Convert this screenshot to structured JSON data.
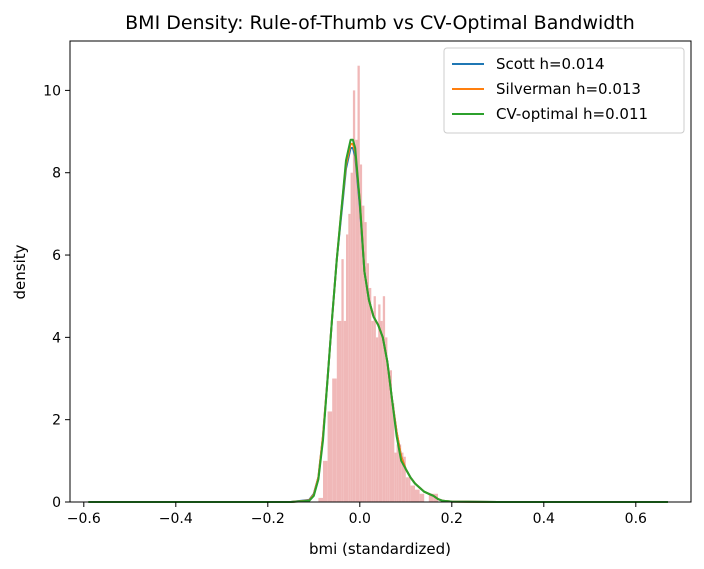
{
  "chart_data": {
    "type": "line",
    "title": "BMI Density: Rule-of-Thumb vs CV-Optimal Bandwidth",
    "xlabel": "bmi (standardized)",
    "ylabel": "density",
    "xlim": [
      -0.63,
      0.72
    ],
    "ylim": [
      0,
      11.2
    ],
    "xticks": [
      -0.6,
      -0.4,
      -0.2,
      0.0,
      0.2,
      0.4,
      0.6
    ],
    "xtick_labels": [
      "−0.6",
      "−0.4",
      "−0.2",
      "0.0",
      "0.2",
      "0.4",
      "0.6"
    ],
    "yticks": [
      0,
      2,
      4,
      6,
      8,
      10
    ],
    "ytick_labels": [
      "0",
      "2",
      "4",
      "6",
      "8",
      "10"
    ],
    "grid": false,
    "legend_position": "top-right",
    "histogram": {
      "color": "#f0b8b8",
      "bins": [
        {
          "x0": -0.09,
          "x1": -0.08,
          "value": 0.1
        },
        {
          "x0": -0.08,
          "x1": -0.07,
          "value": 1.0
        },
        {
          "x0": -0.07,
          "x1": -0.06,
          "value": 2.2
        },
        {
          "x0": -0.06,
          "x1": -0.05,
          "value": 3.0
        },
        {
          "x0": -0.05,
          "x1": -0.04,
          "value": 4.4
        },
        {
          "x0": -0.04,
          "x1": -0.035,
          "value": 5.9
        },
        {
          "x0": -0.035,
          "x1": -0.03,
          "value": 4.4
        },
        {
          "x0": -0.03,
          "x1": -0.025,
          "value": 6.5
        },
        {
          "x0": -0.025,
          "x1": -0.02,
          "value": 7.0
        },
        {
          "x0": -0.02,
          "x1": -0.015,
          "value": 8.0
        },
        {
          "x0": -0.015,
          "x1": -0.01,
          "value": 10.0
        },
        {
          "x0": -0.01,
          "x1": -0.005,
          "value": 8.8
        },
        {
          "x0": -0.005,
          "x1": 0.0,
          "value": 10.6
        },
        {
          "x0": 0.0,
          "x1": 0.005,
          "value": 8.2
        },
        {
          "x0": 0.005,
          "x1": 0.01,
          "value": 7.2
        },
        {
          "x0": 0.01,
          "x1": 0.015,
          "value": 6.8
        },
        {
          "x0": 0.015,
          "x1": 0.02,
          "value": 5.8
        },
        {
          "x0": 0.02,
          "x1": 0.025,
          "value": 5.2
        },
        {
          "x0": 0.025,
          "x1": 0.03,
          "value": 4.4
        },
        {
          "x0": 0.03,
          "x1": 0.035,
          "value": 5.0
        },
        {
          "x0": 0.035,
          "x1": 0.04,
          "value": 4.0
        },
        {
          "x0": 0.04,
          "x1": 0.045,
          "value": 4.8
        },
        {
          "x0": 0.045,
          "x1": 0.05,
          "value": 4.4
        },
        {
          "x0": 0.05,
          "x1": 0.055,
          "value": 5.0
        },
        {
          "x0": 0.055,
          "x1": 0.06,
          "value": 4.0
        },
        {
          "x0": 0.06,
          "x1": 0.065,
          "value": 3.2
        },
        {
          "x0": 0.065,
          "x1": 0.07,
          "value": 3.2
        },
        {
          "x0": 0.07,
          "x1": 0.075,
          "value": 2.4
        },
        {
          "x0": 0.075,
          "x1": 0.08,
          "value": 1.2
        },
        {
          "x0": 0.08,
          "x1": 0.085,
          "value": 1.4
        },
        {
          "x0": 0.085,
          "x1": 0.09,
          "value": 1.4
        },
        {
          "x0": 0.09,
          "x1": 0.095,
          "value": 1.2
        },
        {
          "x0": 0.095,
          "x1": 0.1,
          "value": 1.1
        },
        {
          "x0": 0.1,
          "x1": 0.105,
          "value": 0.6
        },
        {
          "x0": 0.105,
          "x1": 0.11,
          "value": 0.6
        },
        {
          "x0": 0.11,
          "x1": 0.12,
          "value": 0.4
        },
        {
          "x0": 0.12,
          "x1": 0.13,
          "value": 0.3
        },
        {
          "x0": 0.13,
          "x1": 0.14,
          "value": 0.2
        },
        {
          "x0": 0.15,
          "x1": 0.16,
          "value": 0.2
        },
        {
          "x0": 0.16,
          "x1": 0.17,
          "value": 0.2
        }
      ]
    },
    "series": [
      {
        "name": "Scott h=0.014",
        "color": "#1f77b4",
        "x": [
          -0.59,
          -0.3,
          -0.15,
          -0.11,
          -0.1,
          -0.09,
          -0.08,
          -0.07,
          -0.06,
          -0.05,
          -0.04,
          -0.03,
          -0.02,
          -0.015,
          -0.01,
          0.0,
          0.01,
          0.02,
          0.03,
          0.04,
          0.05,
          0.06,
          0.07,
          0.08,
          0.09,
          0.1,
          0.11,
          0.12,
          0.13,
          0.14,
          0.15,
          0.16,
          0.17,
          0.18,
          0.2,
          0.3,
          0.67
        ],
        "y": [
          0,
          0,
          0,
          0.05,
          0.2,
          0.6,
          1.6,
          3.0,
          4.5,
          5.9,
          7.0,
          8.1,
          8.6,
          8.6,
          8.4,
          7.2,
          5.6,
          4.9,
          4.5,
          4.3,
          4.0,
          3.4,
          2.5,
          1.7,
          1.1,
          0.8,
          0.6,
          0.45,
          0.35,
          0.25,
          0.2,
          0.15,
          0.07,
          0.03,
          0.01,
          0,
          0
        ]
      },
      {
        "name": "Silverman h=0.013",
        "color": "#ff7f0e",
        "x": [
          -0.59,
          -0.3,
          -0.15,
          -0.11,
          -0.1,
          -0.09,
          -0.08,
          -0.07,
          -0.06,
          -0.05,
          -0.04,
          -0.03,
          -0.02,
          -0.015,
          -0.01,
          0.0,
          0.01,
          0.02,
          0.03,
          0.04,
          0.05,
          0.06,
          0.07,
          0.08,
          0.09,
          0.1,
          0.11,
          0.12,
          0.13,
          0.14,
          0.15,
          0.16,
          0.17,
          0.18,
          0.2,
          0.3,
          0.67
        ],
        "y": [
          0,
          0,
          0,
          0.04,
          0.18,
          0.6,
          1.6,
          3.0,
          4.5,
          5.9,
          7.1,
          8.2,
          8.7,
          8.7,
          8.5,
          7.3,
          5.6,
          4.9,
          4.5,
          4.3,
          4.0,
          3.4,
          2.5,
          1.7,
          1.1,
          0.8,
          0.6,
          0.45,
          0.35,
          0.25,
          0.2,
          0.15,
          0.07,
          0.03,
          0.01,
          0,
          0
        ]
      },
      {
        "name": "CV-optimal h=0.011",
        "color": "#2ca02c",
        "x": [
          -0.59,
          -0.3,
          -0.15,
          -0.11,
          -0.1,
          -0.09,
          -0.08,
          -0.07,
          -0.06,
          -0.05,
          -0.04,
          -0.03,
          -0.02,
          -0.015,
          -0.01,
          0.0,
          0.01,
          0.02,
          0.03,
          0.04,
          0.05,
          0.06,
          0.07,
          0.08,
          0.09,
          0.1,
          0.11,
          0.12,
          0.13,
          0.14,
          0.15,
          0.16,
          0.17,
          0.18,
          0.2,
          0.3,
          0.67
        ],
        "y": [
          0,
          0,
          0,
          0.03,
          0.15,
          0.55,
          1.5,
          3.0,
          4.5,
          5.9,
          7.1,
          8.3,
          8.8,
          8.8,
          8.6,
          7.3,
          5.6,
          4.9,
          4.5,
          4.3,
          4.0,
          3.4,
          2.5,
          1.6,
          1.0,
          0.8,
          0.6,
          0.45,
          0.35,
          0.25,
          0.2,
          0.15,
          0.07,
          0.03,
          0.01,
          0,
          0
        ]
      }
    ]
  }
}
